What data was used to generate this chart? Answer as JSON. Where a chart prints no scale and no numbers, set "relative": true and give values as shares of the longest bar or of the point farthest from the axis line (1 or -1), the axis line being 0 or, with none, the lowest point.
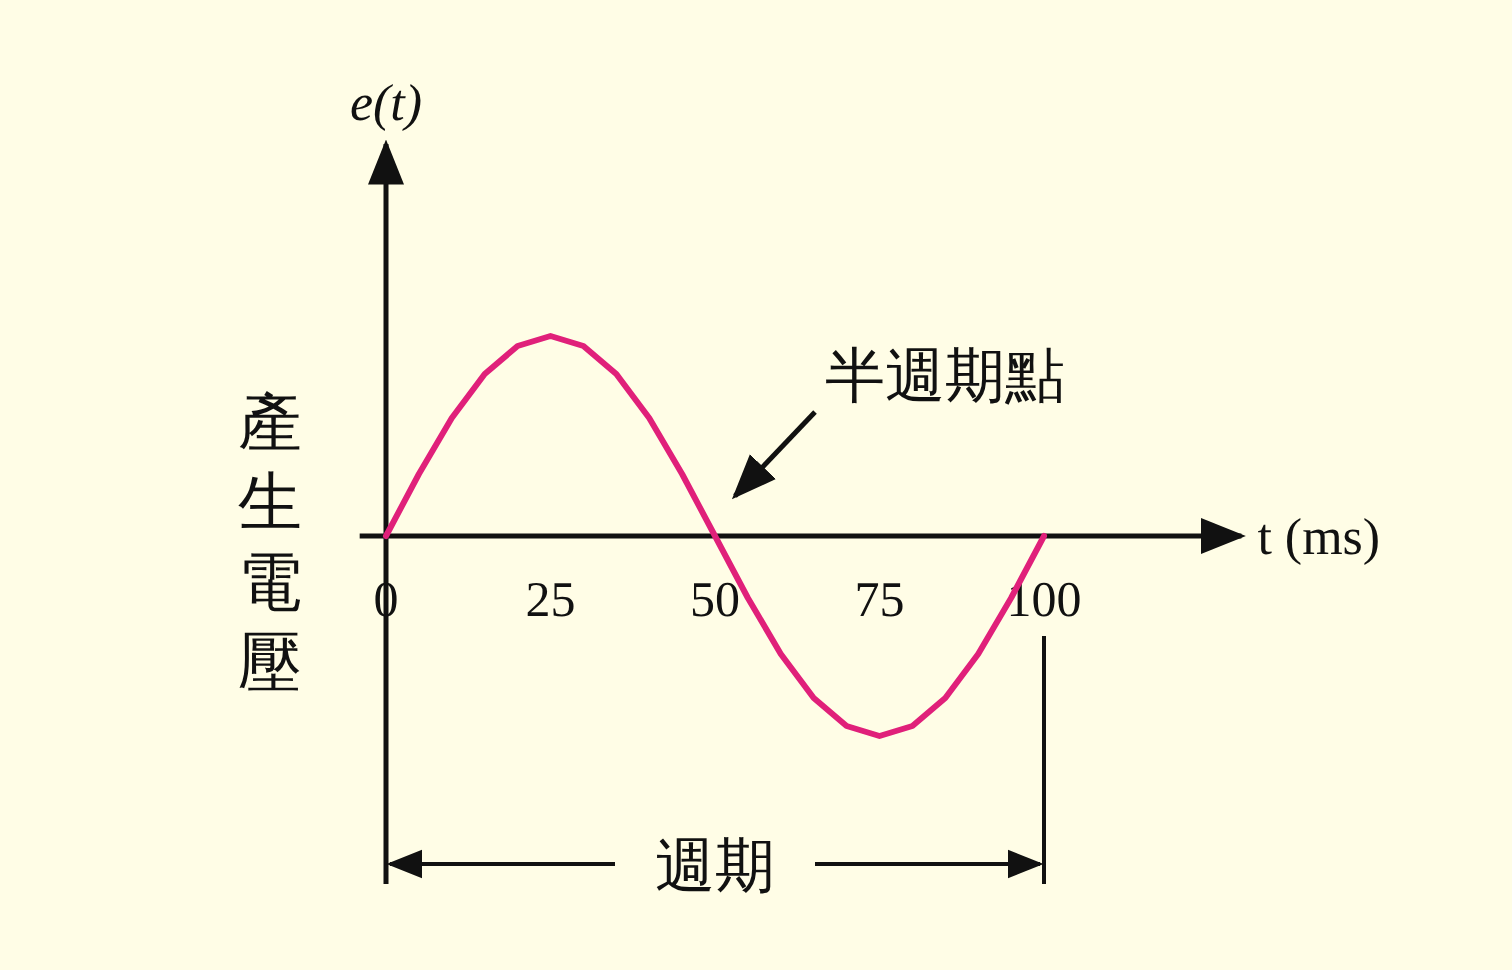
{
  "chart_data": {
    "type": "line",
    "relative": true,
    "ylabel": "產生電壓",
    "title": "e(t)",
    "xlabel": "t (ms)",
    "x": [
      0,
      5,
      10,
      15,
      20,
      25,
      30,
      35,
      40,
      45,
      50,
      55,
      60,
      65,
      70,
      75,
      80,
      85,
      90,
      95,
      100
    ],
    "series": [
      {
        "color": "#e0207a",
        "values": [
          0,
          0.31,
          0.59,
          0.81,
          0.95,
          1,
          0.95,
          0.81,
          0.59,
          0.31,
          0,
          -0.31,
          -0.59,
          -0.81,
          -0.95,
          -1,
          -0.95,
          -0.81,
          -0.59,
          -0.31,
          0
        ]
      }
    ],
    "xlim": [
      -4,
      130
    ],
    "xticks": [
      0,
      25,
      50,
      75,
      100
    ],
    "annotations": [
      "半週期點",
      "週期"
    ],
    "ref_lines": [
      {
        "axis": "x",
        "value": 100,
        "color": "#111111"
      }
    ]
  }
}
